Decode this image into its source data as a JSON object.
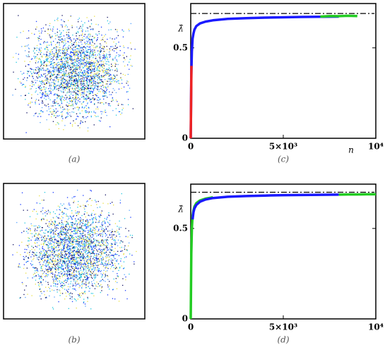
{
  "images": [
    {
      "caption": "(a)"
    },
    {
      "caption": "(b)"
    }
  ],
  "chart_data": [
    {
      "type": "line",
      "caption": "(c)",
      "ylabel": "λ̂",
      "xlabel": "n",
      "xlim": [
        0,
        10000
      ],
      "ylim": [
        0,
        0.745
      ],
      "xticks": [
        0,
        {
          "value": 5000,
          "label": "5×10³"
        },
        {
          "value": 10000,
          "label": "10⁴"
        }
      ],
      "yticks": [
        0,
        0.5
      ],
      "reference_line": {
        "value": 0.69,
        "style": "dashdot",
        "color": "#000000"
      },
      "series": [
        {
          "color": "#1a1aff",
          "x": [
            0,
            30,
            60,
            100,
            150,
            200,
            300,
            500,
            800,
            1200,
            2000,
            3000,
            4000,
            5000,
            6000,
            7000,
            8000
          ],
          "values": [
            0,
            0.35,
            0.48,
            0.55,
            0.58,
            0.6,
            0.62,
            0.635,
            0.645,
            0.652,
            0.66,
            0.664,
            0.667,
            0.669,
            0.671,
            0.672,
            0.673
          ]
        },
        {
          "color": "#22cc22",
          "x": [
            7000,
            7500,
            8000,
            8500,
            9000
          ],
          "values": [
            0.673,
            0.676,
            0.675,
            0.677,
            0.676
          ]
        },
        {
          "color": "#ee2222",
          "x": [
            0,
            20,
            40
          ],
          "values": [
            0,
            0.2,
            0.4
          ]
        }
      ]
    },
    {
      "type": "line",
      "caption": "(d)",
      "ylabel": "λ̂",
      "xlim": [
        0,
        10000
      ],
      "ylim": [
        0,
        0.745
      ],
      "xticks": [
        0,
        {
          "value": 5000,
          "label": "5×10³"
        },
        {
          "value": 10000,
          "label": "10⁴"
        }
      ],
      "yticks": [
        0,
        0.5
      ],
      "reference_line": {
        "value": 0.7,
        "style": "dashdot",
        "color": "#000000"
      },
      "series": [
        {
          "color": "#22cc22",
          "x": [
            0,
            30,
            60,
            100,
            150,
            200,
            300,
            500,
            800,
            1200
          ],
          "values": [
            0,
            0.36,
            0.5,
            0.57,
            0.6,
            0.62,
            0.64,
            0.655,
            0.665,
            0.672
          ]
        },
        {
          "color": "#1a1aff",
          "x": [
            100,
            150,
            200,
            300,
            500,
            800,
            1200,
            2000,
            3000,
            4000,
            5000,
            6000,
            7000,
            8000
          ],
          "values": [
            0.55,
            0.59,
            0.61,
            0.63,
            0.648,
            0.66,
            0.668,
            0.675,
            0.679,
            0.682,
            0.684,
            0.685,
            0.686,
            0.687
          ]
        },
        {
          "color": "#22cc22",
          "x": [
            8000,
            8500,
            9000,
            9500,
            10000
          ],
          "values": [
            0.687,
            0.688,
            0.688,
            0.689,
            0.689
          ]
        }
      ]
    }
  ]
}
